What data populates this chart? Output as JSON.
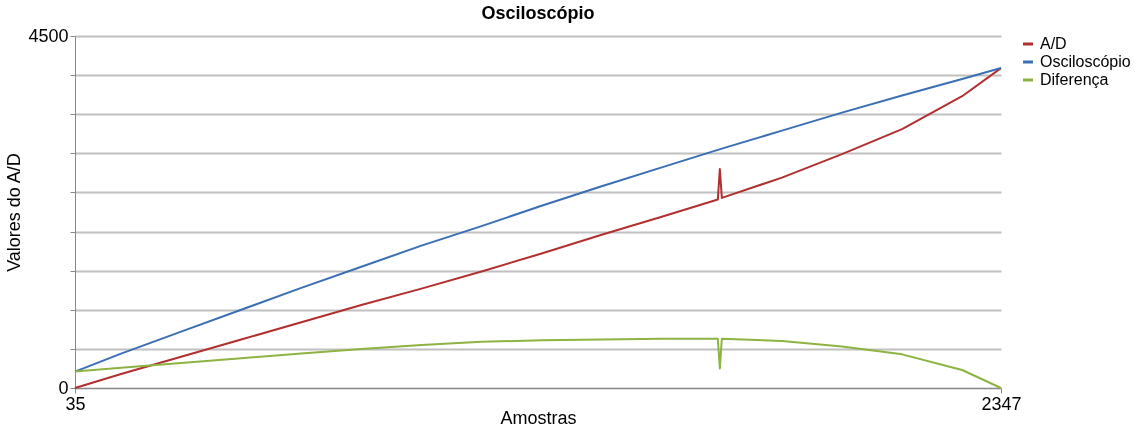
{
  "chart_data": {
    "type": "line",
    "title": "Osciloscópio",
    "xlabel": "Amostras",
    "ylabel": "Valores do A/D",
    "xlim": [
      35,
      2347
    ],
    "xticks": [
      35,
      2347
    ],
    "ylim": [
      0,
      4500
    ],
    "yticks": [
      0,
      {
        "value": 500,
        "label": null
      },
      {
        "value": 1000,
        "label": null
      },
      {
        "value": 1500,
        "label": null
      },
      {
        "value": 2000,
        "label": null
      },
      {
        "value": 2500,
        "label": null
      },
      {
        "value": 3000,
        "label": null
      },
      {
        "value": 3500,
        "label": null
      },
      {
        "value": 4000,
        "label": null
      },
      4500
    ],
    "grid": "y",
    "legend": "right",
    "marker": "none",
    "line_style": "solid",
    "series": [
      {
        "name": "A/D",
        "color": "#b22f2f",
        "x": [
          35,
          150,
          300,
          450,
          600,
          750,
          900,
          1050,
          1200,
          1350,
          1500,
          1640,
          1645,
          1650,
          1800,
          1950,
          2100,
          2250,
          2347
        ],
        "values": [
          0,
          180,
          400,
          620,
          840,
          1060,
          1270,
          1490,
          1720,
          1960,
          2190,
          2410,
          2800,
          2430,
          2690,
          2990,
          3310,
          3730,
          4090
        ]
      },
      {
        "name": "Osciloscópio",
        "color": "#3a6fb5",
        "x": [
          35,
          150,
          300,
          450,
          600,
          750,
          900,
          1050,
          1200,
          1350,
          1500,
          1650,
          1800,
          1950,
          2100,
          2250,
          2347
        ],
        "values": [
          210,
          440,
          720,
          1000,
          1280,
          1550,
          1820,
          2070,
          2330,
          2580,
          2820,
          3060,
          3290,
          3520,
          3740,
          3950,
          4090
        ]
      },
      {
        "name": "Diferença",
        "color": "#8db342",
        "x": [
          35,
          150,
          300,
          450,
          600,
          750,
          900,
          1050,
          1200,
          1350,
          1500,
          1640,
          1645,
          1650,
          1800,
          1950,
          2100,
          2250,
          2347
        ],
        "values": [
          210,
          260,
          320,
          380,
          440,
          500,
          550,
          590,
          610,
          620,
          630,
          630,
          250,
          630,
          600,
          530,
          430,
          230,
          0
        ]
      }
    ]
  }
}
